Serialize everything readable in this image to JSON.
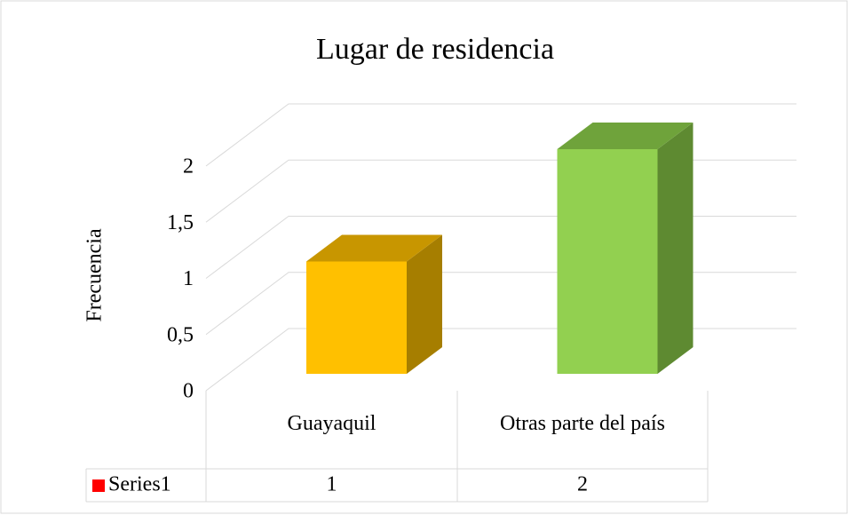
{
  "chart_data": {
    "type": "bar3d",
    "title": "Lugar de residencia",
    "y_label": "Frecuencia",
    "categories": [
      "Guayaquil",
      "Otras parte del país"
    ],
    "series": [
      {
        "name": "Series1",
        "color": "#ff0000",
        "values": [
          1,
          2
        ],
        "colors": [
          {
            "front": "#ffc000",
            "top": "#c89600",
            "side": "#a67e00"
          },
          {
            "front": "#92d050",
            "top": "#6fa33b",
            "side": "#5e8a31"
          }
        ]
      }
    ],
    "ylim": [
      0,
      2
    ],
    "yticks": [
      0,
      {
        "value": 0.5,
        "label": "0,5"
      },
      1,
      {
        "value": 1.5,
        "label": "1,5"
      },
      2
    ],
    "grid": true,
    "data_table": true
  }
}
